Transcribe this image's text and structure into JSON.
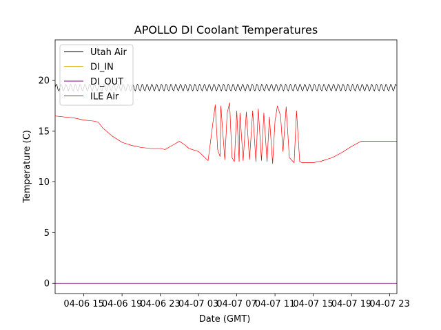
{
  "chart_data": {
    "type": "line",
    "title": "APOLLO DI Coolant Temperatures",
    "xlabel": "Date (GMT)",
    "ylabel": "Temperature (C)",
    "x_unit": "datetime (GMT)",
    "xlim": [
      "2021-04-06T12:00",
      "2021-04-07T23:45"
    ],
    "ylim": [
      -1,
      24
    ],
    "x_ticks": [
      {
        "value": "2021-04-06T15:00",
        "label": "04-06 15"
      },
      {
        "value": "2021-04-06T19:00",
        "label": "04-06 19"
      },
      {
        "value": "2021-04-06T23:00",
        "label": "04-06 23"
      },
      {
        "value": "2021-04-07T03:00",
        "label": "04-07 03"
      },
      {
        "value": "2021-04-07T07:00",
        "label": "04-07 07"
      },
      {
        "value": "2021-04-07T11:00",
        "label": "04-07 11"
      },
      {
        "value": "2021-04-07T15:00",
        "label": "04-07 15"
      },
      {
        "value": "2021-04-07T19:00",
        "label": "04-07 19"
      },
      {
        "value": "2021-04-07T23:00",
        "label": "04-07 23"
      }
    ],
    "y_ticks": [
      0,
      5,
      10,
      15,
      20
    ],
    "grid": false,
    "legend_position": "upper-left",
    "series": [
      {
        "name": "Utah Air",
        "color": "#000000",
        "style": "oscillating",
        "x": [
          "2021-04-06T12:00",
          "2021-04-07T23:45"
        ],
        "base": [
          19.3,
          19.3
        ],
        "amplitude": 0.35,
        "period_hours": 0.5
      },
      {
        "name": "DI_IN",
        "color": "#e6b422",
        "x": [
          "2021-04-06T12:00",
          "2021-04-07T23:45"
        ],
        "y": [
          0,
          0
        ]
      },
      {
        "name": "DI_OUT",
        "color": "#800080",
        "x": [
          "2021-04-06T12:00",
          "2021-04-07T23:45"
        ],
        "y": [
          0,
          0
        ]
      },
      {
        "name": "ILE Air",
        "color": "#ff0000",
        "x": [
          "2021-04-06T12:00",
          "2021-04-06T13:00",
          "2021-04-06T14:00",
          "2021-04-06T15:00",
          "2021-04-06T16:00",
          "2021-04-06T16:30",
          "2021-04-06T17:00",
          "2021-04-06T18:00",
          "2021-04-06T19:00",
          "2021-04-06T20:00",
          "2021-04-06T21:00",
          "2021-04-06T22:00",
          "2021-04-06T23:00",
          "2021-04-06T23:30",
          "2021-04-07T00:15",
          "2021-04-07T01:00",
          "2021-04-07T01:30",
          "2021-04-07T02:00",
          "2021-04-07T03:00",
          "2021-04-07T04:00",
          "2021-04-07T04:30",
          "2021-04-07T04:45",
          "2021-04-07T05:00",
          "2021-04-07T05:15",
          "2021-04-07T05:20",
          "2021-04-07T05:45",
          "2021-04-07T06:00",
          "2021-04-07T06:15",
          "2021-04-07T06:30",
          "2021-04-07T06:45",
          "2021-04-07T07:00",
          "2021-04-07T07:15",
          "2021-04-07T07:20",
          "2021-04-07T07:40",
          "2021-04-07T08:00",
          "2021-04-07T08:20",
          "2021-04-07T08:40",
          "2021-04-07T09:00",
          "2021-04-07T09:15",
          "2021-04-07T09:35",
          "2021-04-07T09:50",
          "2021-04-07T10:10",
          "2021-04-07T10:25",
          "2021-04-07T10:45",
          "2021-04-07T11:00",
          "2021-04-07T11:15",
          "2021-04-07T11:35",
          "2021-04-07T11:50",
          "2021-04-07T12:10",
          "2021-04-07T12:30",
          "2021-04-07T13:00",
          "2021-04-07T13:15",
          "2021-04-07T13:35",
          "2021-04-07T13:50",
          "2021-04-07T14:10",
          "2021-04-07T14:30",
          "2021-04-07T15:00",
          "2021-04-07T15:30",
          "2021-04-07T15:40",
          "2021-04-07T16:00",
          "2021-04-07T17:00",
          "2021-04-07T18:00",
          "2021-04-07T19:00",
          "2021-04-07T20:00",
          "2021-04-07T21:00",
          "2021-04-07T22:00",
          "2021-04-07T23:00",
          "2021-04-07T23:45"
        ],
        "y": [
          16.5,
          16.4,
          16.3,
          16.1,
          16.0,
          15.9,
          15.3,
          14.5,
          13.9,
          13.6,
          13.4,
          13.3,
          13.3,
          13.2,
          13.6,
          14.0,
          13.7,
          13.3,
          13.0,
          12.1,
          15.8,
          17.6,
          13.2,
          12.5,
          17.5,
          12.2,
          16.8,
          17.8,
          12.4,
          12.0,
          17.0,
          12.0,
          16.8,
          12.1,
          16.9,
          12.2,
          17.0,
          12.0,
          17.2,
          12.1,
          16.8,
          12.0,
          16.4,
          11.8,
          16.0,
          17.5,
          16.5,
          13.0,
          17.4,
          12.4,
          11.9,
          17.0,
          12.0,
          11.9,
          11.9,
          11.9,
          11.9,
          12.0,
          12.0,
          12.1,
          12.4,
          12.9,
          13.5,
          14.0,
          14.0,
          14.0,
          14.0,
          14.0
        ]
      }
    ]
  }
}
